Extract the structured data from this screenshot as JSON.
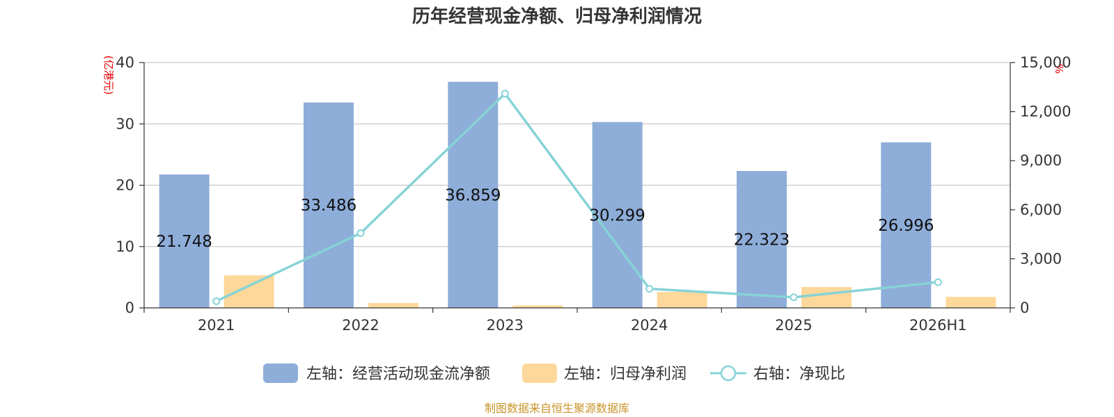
{
  "chart_data": {
    "type": "bar",
    "title": "历年经营现金净额、归母净利润情况",
    "categories": [
      "2021",
      "2022",
      "2023",
      "2024",
      "2025",
      "2026H1"
    ],
    "left_axis": {
      "unit": "(亿港元)",
      "ylim": [
        0,
        40
      ],
      "ticks": [
        "0",
        "10",
        "20",
        "30",
        "40"
      ]
    },
    "right_axis": {
      "unit": "%",
      "ylim": [
        0,
        15000
      ],
      "ticks": [
        "0",
        "3,000",
        "6,000",
        "9,000",
        "12,000",
        "15,000"
      ]
    },
    "series": [
      {
        "name": "左轴：经营活动现金流净额",
        "type": "bar",
        "axis": "left",
        "color": "#8eadd9",
        "values": [
          21.748,
          33.486,
          36.859,
          30.299,
          22.323,
          26.996
        ],
        "labels": [
          "21.748",
          "33.486",
          "36.859",
          "30.299",
          "22.323",
          "26.996"
        ]
      },
      {
        "name": "左轴：归母净利润",
        "type": "bar",
        "axis": "left",
        "color": "#fdd89a",
        "values": [
          5.3,
          0.8,
          0.4,
          2.6,
          3.4,
          1.8
        ]
      },
      {
        "name": "右轴：净现比",
        "type": "line",
        "axis": "right",
        "color": "#86d3d6",
        "values": [
          410,
          4570,
          13100,
          1170,
          650,
          1570
        ]
      }
    ],
    "grid": true,
    "legend_position": "bottom"
  },
  "source": "制图数据来自恒生聚源数据库"
}
